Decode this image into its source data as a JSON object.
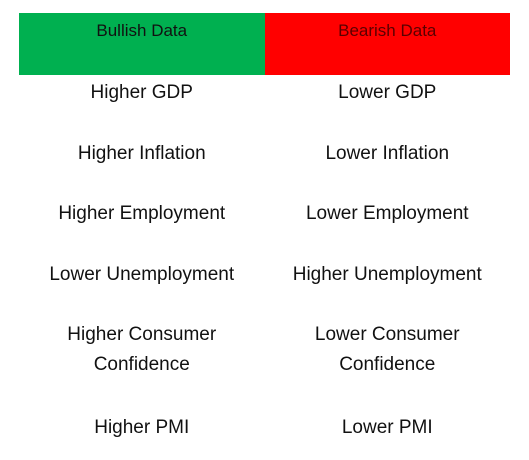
{
  "table": {
    "headers": {
      "bullish": "Bullish Data",
      "bearish": "Bearish Data"
    },
    "rows": [
      {
        "bullish": "Higher GDP",
        "bearish": "Lower GDP"
      },
      {
        "bullish": "Higher Inflation",
        "bearish": "Lower Inflation"
      },
      {
        "bullish": "Higher Employment",
        "bearish": "Lower Employment"
      },
      {
        "bullish": "Lower Unemployment",
        "bearish": "Higher Unemployment"
      },
      {
        "bullish": [
          "Higher Consumer",
          "Confidence"
        ],
        "bearish": [
          "Lower Consumer",
          "Confidence"
        ]
      },
      {
        "bullish": "Higher PMI",
        "bearish": "Lower PMI"
      }
    ],
    "colors": {
      "bullish_header": "#00b050",
      "bearish_header": "#ff0000"
    }
  }
}
